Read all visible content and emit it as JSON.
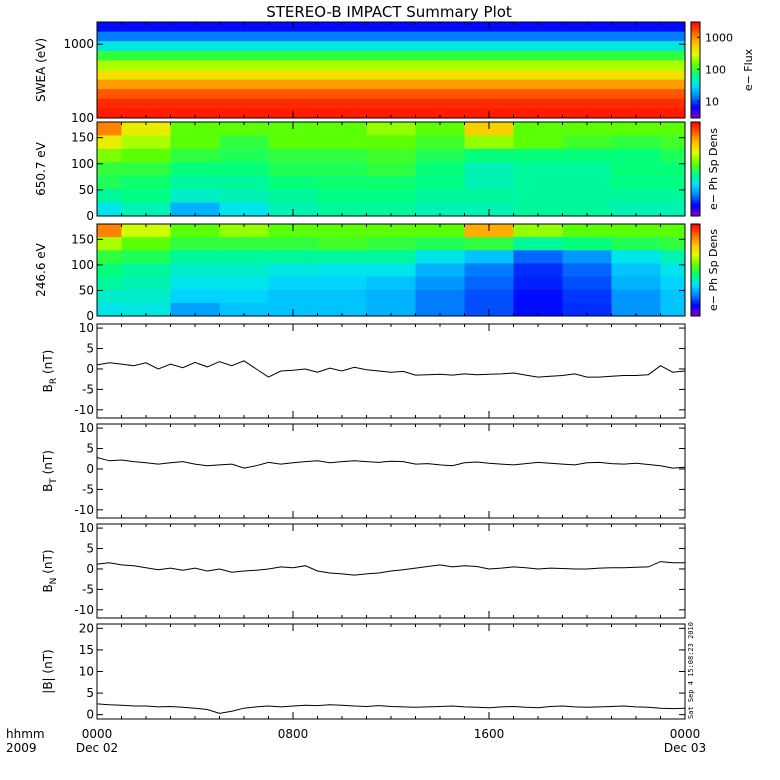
{
  "title": "STEREO-B IMPACT Summary Plot",
  "timestamp": "Sat Sep  4 15:08:23 2010",
  "x_axis": {
    "row1_left": "hhmm",
    "row2_left": "2009",
    "ticks": [
      "0000",
      "0800",
      "1600",
      "0000"
    ],
    "dates": [
      "Dec 02",
      "Dec 03"
    ]
  },
  "colors": {
    "spectrogram": [
      "#8a00c8",
      "#0000ff",
      "#0080ff",
      "#00e0ff",
      "#00ff80",
      "#60ff00",
      "#e0ff00",
      "#ffc000",
      "#ff6000",
      "#ff0000"
    ],
    "line": "#000000",
    "background": "#ffffff"
  },
  "chart_data": [
    {
      "type": "heatmap",
      "name": "swea",
      "ylabel": "SWEA (eV)",
      "yscale": "log",
      "ylim": [
        100,
        2000
      ],
      "yticks": [
        "1000",
        "100"
      ],
      "colorbar": {
        "label": "e− Flux",
        "scale": "log",
        "range": [
          3,
          3000
        ],
        "ticks": [
          "1000",
          "100",
          "10"
        ]
      },
      "energy_bands": [
        "2000",
        "1500",
        "1000",
        "700",
        "500",
        "350",
        "250",
        "180",
        "120",
        "100"
      ],
      "band_levels": [
        0.12,
        0.22,
        0.36,
        0.5,
        0.62,
        0.72,
        0.82,
        0.9,
        0.95,
        0.97
      ]
    },
    {
      "type": "heatmap",
      "name": "pad650",
      "ylabel": "650.7 eV",
      "ylim": [
        0,
        180
      ],
      "yticks": [
        "150",
        "100",
        "50",
        "0"
      ],
      "colorbar": {
        "label": "e− Ph Sp Dens"
      },
      "time_bins_hours": [
        0,
        2,
        4,
        6,
        8,
        10,
        12,
        14,
        16,
        18,
        20,
        22,
        24
      ],
      "pitch_angle_bins": [
        180,
        150,
        120,
        90,
        60,
        30,
        0
      ],
      "levels": [
        [
          0.85,
          0.7,
          0.55,
          0.55,
          0.55,
          0.55,
          0.6,
          0.55,
          0.75,
          0.55,
          0.55,
          0.55,
          0.55
        ],
        [
          0.7,
          0.62,
          0.55,
          0.5,
          0.55,
          0.55,
          0.55,
          0.52,
          0.6,
          0.55,
          0.52,
          0.5,
          0.52
        ],
        [
          0.58,
          0.55,
          0.5,
          0.48,
          0.5,
          0.5,
          0.52,
          0.48,
          0.45,
          0.45,
          0.45,
          0.45,
          0.48
        ],
        [
          0.5,
          0.5,
          0.45,
          0.45,
          0.48,
          0.48,
          0.5,
          0.45,
          0.4,
          0.42,
          0.42,
          0.45,
          0.45
        ],
        [
          0.48,
          0.46,
          0.42,
          0.42,
          0.45,
          0.46,
          0.46,
          0.44,
          0.4,
          0.42,
          0.42,
          0.44,
          0.44
        ],
        [
          0.42,
          0.44,
          0.38,
          0.4,
          0.42,
          0.44,
          0.44,
          0.42,
          0.42,
          0.42,
          0.42,
          0.42,
          0.42
        ],
        [
          0.35,
          0.4,
          0.28,
          0.35,
          0.4,
          0.42,
          0.42,
          0.4,
          0.4,
          0.42,
          0.42,
          0.4,
          0.4
        ]
      ]
    },
    {
      "type": "heatmap",
      "name": "pad246",
      "ylabel": "246.6 eV",
      "ylim": [
        0,
        180
      ],
      "yticks": [
        "150",
        "100",
        "50",
        "0"
      ],
      "colorbar": {
        "label": "e− Ph Sp Dens"
      },
      "time_bins_hours": [
        0,
        2,
        4,
        6,
        8,
        10,
        12,
        14,
        16,
        18,
        20,
        22,
        24
      ],
      "pitch_angle_bins": [
        180,
        150,
        120,
        90,
        60,
        30,
        0
      ],
      "levels": [
        [
          0.85,
          0.65,
          0.55,
          0.6,
          0.55,
          0.55,
          0.55,
          0.55,
          0.8,
          0.6,
          0.55,
          0.55,
          0.55
        ],
        [
          0.62,
          0.55,
          0.5,
          0.5,
          0.5,
          0.52,
          0.5,
          0.48,
          0.5,
          0.42,
          0.45,
          0.48,
          0.5
        ],
        [
          0.5,
          0.48,
          0.42,
          0.42,
          0.42,
          0.42,
          0.42,
          0.35,
          0.3,
          0.2,
          0.25,
          0.35,
          0.4
        ],
        [
          0.45,
          0.42,
          0.38,
          0.38,
          0.36,
          0.35,
          0.35,
          0.28,
          0.22,
          0.15,
          0.2,
          0.3,
          0.35
        ],
        [
          0.42,
          0.4,
          0.35,
          0.35,
          0.32,
          0.32,
          0.3,
          0.25,
          0.2,
          0.14,
          0.18,
          0.28,
          0.32
        ],
        [
          0.38,
          0.38,
          0.32,
          0.32,
          0.3,
          0.3,
          0.28,
          0.22,
          0.18,
          0.12,
          0.16,
          0.25,
          0.3
        ],
        [
          0.35,
          0.36,
          0.26,
          0.3,
          0.3,
          0.3,
          0.28,
          0.22,
          0.18,
          0.12,
          0.15,
          0.25,
          0.3
        ]
      ]
    },
    {
      "type": "line",
      "name": "br",
      "ylabel": "B",
      "ylabel_sub": "R",
      "ylabel_unit": " (nT)",
      "ylim": [
        -12,
        11
      ],
      "yticks": [
        10,
        5,
        0,
        -5,
        -10
      ],
      "x": [
        0,
        0.5,
        1,
        1.5,
        2,
        2.5,
        3,
        3.5,
        4,
        4.5,
        5,
        5.5,
        6,
        6.5,
        7,
        7.5,
        8,
        8.5,
        9,
        9.5,
        10,
        10.5,
        11,
        11.5,
        12,
        12.5,
        13,
        13.5,
        14,
        14.5,
        15,
        15.5,
        16,
        16.5,
        17,
        17.5,
        18,
        18.5,
        19,
        19.5,
        20,
        20.5,
        21,
        21.5,
        22,
        22.5,
        23,
        23.5,
        24
      ],
      "values": [
        1,
        1.5,
        1.2,
        0.8,
        1.5,
        0,
        1.2,
        0.3,
        1.6,
        0.5,
        1.8,
        0.8,
        2,
        0,
        -2,
        -0.5,
        -0.3,
        0,
        -0.8,
        0.2,
        -0.5,
        0.4,
        -0.2,
        -0.5,
        -0.8,
        -0.6,
        -1.5,
        -1.4,
        -1.3,
        -1.5,
        -1.2,
        -1.4,
        -1.3,
        -1.2,
        -1,
        -1.5,
        -2,
        -1.8,
        -1.6,
        -1.2,
        -2,
        -2,
        -1.8,
        -1.6,
        -1.6,
        -1.4,
        0.8,
        -0.8,
        -0.5
      ]
    },
    {
      "type": "line",
      "name": "bt",
      "ylabel": "B",
      "ylabel_sub": "T",
      "ylabel_unit": " (nT)",
      "ylim": [
        -12,
        11
      ],
      "yticks": [
        10,
        5,
        0,
        -5,
        -10
      ],
      "x": [
        0,
        0.5,
        1,
        1.5,
        2,
        2.5,
        3,
        3.5,
        4,
        4.5,
        5,
        5.5,
        6,
        6.5,
        7,
        7.5,
        8,
        8.5,
        9,
        9.5,
        10,
        10.5,
        11,
        11.5,
        12,
        12.5,
        13,
        13.5,
        14,
        14.5,
        15,
        15.5,
        16,
        16.5,
        17,
        17.5,
        18,
        18.5,
        19,
        19.5,
        20,
        20.5,
        21,
        21.5,
        22,
        22.5,
        23,
        23.5,
        24
      ],
      "values": [
        2.8,
        2,
        2.2,
        1.8,
        1.5,
        1.2,
        1.5,
        1.8,
        1.2,
        0.8,
        1,
        1.2,
        0.2,
        0.8,
        1.6,
        1.2,
        1.5,
        1.8,
        2,
        1.5,
        1.8,
        2,
        1.8,
        1.6,
        1.9,
        1.8,
        1.2,
        1.3,
        1,
        0.8,
        1.5,
        1.7,
        1.4,
        1.2,
        1,
        1.3,
        1.6,
        1.4,
        1.2,
        1,
        1.5,
        1.6,
        1.3,
        1.2,
        1.4,
        1.1,
        0.8,
        0.2,
        0.4
      ]
    },
    {
      "type": "line",
      "name": "bn",
      "ylabel": "B",
      "ylabel_sub": "N",
      "ylabel_unit": " (nT)",
      "ylim": [
        -12,
        11
      ],
      "yticks": [
        10,
        5,
        0,
        -5,
        -10
      ],
      "x": [
        0,
        0.5,
        1,
        1.5,
        2,
        2.5,
        3,
        3.5,
        4,
        4.5,
        5,
        5.5,
        6,
        6.5,
        7,
        7.5,
        8,
        8.5,
        9,
        9.5,
        10,
        10.5,
        11,
        11.5,
        12,
        12.5,
        13,
        13.5,
        14,
        14.5,
        15,
        15.5,
        16,
        16.5,
        17,
        17.5,
        18,
        18.5,
        19,
        19.5,
        20,
        20.5,
        21,
        21.5,
        22,
        22.5,
        23,
        23.5,
        24
      ],
      "values": [
        1.2,
        1.5,
        1,
        0.8,
        0.3,
        -0.2,
        0.2,
        -0.3,
        0.2,
        -0.5,
        0,
        -0.8,
        -0.5,
        -0.3,
        0,
        0.5,
        0.3,
        0.8,
        -0.5,
        -1,
        -1.2,
        -1.5,
        -1.2,
        -1,
        -0.5,
        -0.2,
        0.2,
        0.6,
        1,
        0.5,
        0.8,
        0.6,
        0,
        0.2,
        0.5,
        0.3,
        0,
        0.2,
        0.1,
        0,
        0,
        0.2,
        0.3,
        0.3,
        0.4,
        0.5,
        1.8,
        1.5,
        1.5
      ]
    },
    {
      "type": "line",
      "name": "bmag",
      "ylabel": "|B| (nT)",
      "ylim": [
        -1,
        21
      ],
      "yticks": [
        20,
        15,
        10,
        5,
        0
      ],
      "x": [
        0,
        0.5,
        1,
        1.5,
        2,
        2.5,
        3,
        3.5,
        4,
        4.5,
        5,
        5.5,
        6,
        6.5,
        7,
        7.5,
        8,
        8.5,
        9,
        9.5,
        10,
        10.5,
        11,
        11.5,
        12,
        12.5,
        13,
        13.5,
        14,
        14.5,
        15,
        15.5,
        16,
        16.5,
        17,
        17.5,
        18,
        18.5,
        19,
        19.5,
        20,
        20.5,
        21,
        21.5,
        22,
        22.5,
        23,
        23.5,
        24
      ],
      "values": [
        2.5,
        2.3,
        2.2,
        2,
        2,
        1.8,
        1.9,
        1.7,
        1.5,
        1.2,
        0.3,
        0.8,
        1.5,
        1.8,
        2,
        1.8,
        2,
        2.2,
        2.1,
        2.3,
        2.2,
        2,
        1.9,
        2.1,
        1.9,
        1.8,
        1.7,
        1.8,
        1.9,
        2,
        1.8,
        1.7,
        1.6,
        1.8,
        1.9,
        1.7,
        1.6,
        1.9,
        2,
        1.8,
        1.7,
        1.8,
        1.9,
        2,
        1.8,
        1.7,
        1.5,
        1.4,
        1.5
      ]
    }
  ]
}
